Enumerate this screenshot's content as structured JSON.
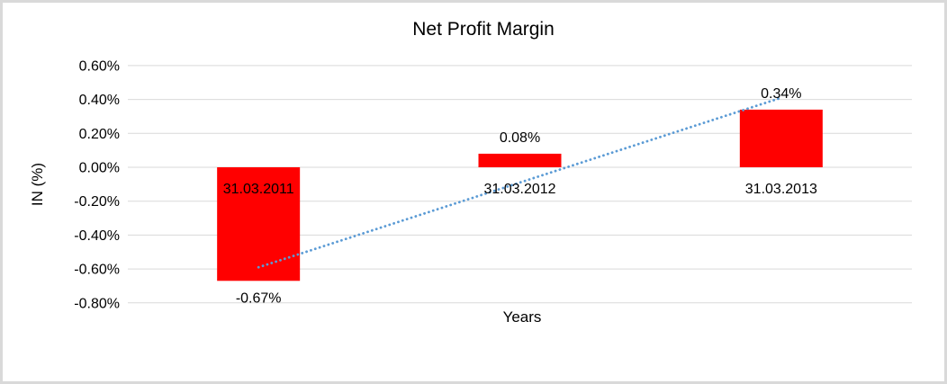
{
  "chart_data": {
    "type": "bar",
    "title": "Net Profit Margin",
    "xlabel": "Years",
    "ylabel": "IN (%)",
    "categories": [
      "31.03.2011",
      "31.03.2012",
      "31.03.2013"
    ],
    "values": [
      -0.67,
      0.08,
      0.34
    ],
    "data_labels": [
      "-0.67%",
      "0.08%",
      "0.34%"
    ],
    "y_ticks": [
      "0.60%",
      "0.40%",
      "0.20%",
      "0.00%",
      "-0.20%",
      "-0.40%",
      "-0.60%",
      "-0.80%"
    ],
    "y_tick_values": [
      0.6,
      0.4,
      0.2,
      0.0,
      -0.2,
      -0.4,
      -0.6,
      -0.8
    ],
    "ylim": [
      -0.8,
      0.6
    ],
    "grid": true,
    "legend": false,
    "bar_color": "#FF0000",
    "grid_color": "#D9D9D9",
    "text_color": "#000000",
    "trendline": {
      "type": "linear",
      "style": "dotted",
      "color": "#5B9BD5",
      "start_value": -0.59,
      "end_value": 0.41
    }
  }
}
